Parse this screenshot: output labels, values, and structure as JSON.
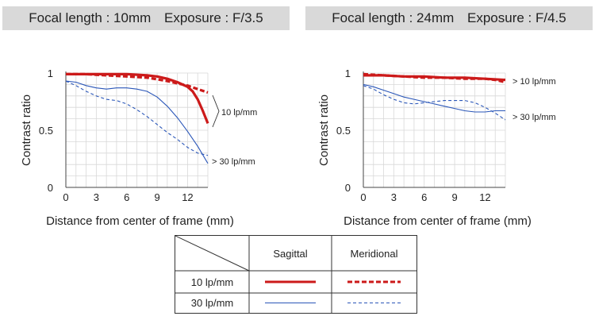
{
  "chart_data": [
    {
      "type": "line",
      "banner": {
        "focal": "Focal length : 10mm",
        "exposure": "Exposure : F/3.5"
      },
      "xlabel": "Distance from center of frame (mm)",
      "ylabel": "Contrast ratio",
      "xlim": [
        0,
        14
      ],
      "ylim": [
        0,
        1
      ],
      "xticks": [
        "0",
        "3",
        "6",
        "9",
        "12"
      ],
      "yticks": [
        "0",
        "0.5",
        "1"
      ],
      "grid": true,
      "annotations": {
        "lp10": "10 lp/mm",
        "lp30": "> 30 lp/mm"
      },
      "series": [
        {
          "name": "10 lp/mm Sagittal",
          "color": "#cc1a1a",
          "style": "solid",
          "weight": "bold",
          "x": [
            0,
            2,
            4,
            6,
            8,
            9,
            10,
            11,
            12,
            12.5,
            13,
            13.5,
            14
          ],
          "y": [
            0.99,
            0.99,
            0.99,
            0.99,
            0.98,
            0.97,
            0.95,
            0.92,
            0.88,
            0.84,
            0.77,
            0.67,
            0.56
          ]
        },
        {
          "name": "10 lp/mm Meridional",
          "color": "#cc1a1a",
          "style": "dashed",
          "weight": "bold",
          "x": [
            0,
            2,
            4,
            6,
            8,
            10,
            11,
            12,
            13,
            14
          ],
          "y": [
            0.99,
            0.99,
            0.98,
            0.97,
            0.96,
            0.93,
            0.91,
            0.89,
            0.86,
            0.83
          ]
        },
        {
          "name": "30 lp/mm Sagittal",
          "color": "#2a56b8",
          "style": "solid",
          "weight": "thin",
          "x": [
            0,
            1,
            2,
            3,
            4,
            5,
            6,
            7,
            8,
            9,
            10,
            11,
            12,
            13,
            14
          ],
          "y": [
            0.93,
            0.92,
            0.89,
            0.87,
            0.86,
            0.87,
            0.87,
            0.86,
            0.84,
            0.79,
            0.71,
            0.61,
            0.49,
            0.36,
            0.21
          ]
        },
        {
          "name": "30 lp/mm Meridional",
          "color": "#2a56b8",
          "style": "dashed",
          "weight": "thin",
          "x": [
            0,
            1,
            2,
            3,
            4,
            5,
            6,
            7,
            8,
            9,
            10,
            11,
            12,
            13,
            14
          ],
          "y": [
            0.93,
            0.89,
            0.84,
            0.8,
            0.77,
            0.76,
            0.73,
            0.68,
            0.62,
            0.55,
            0.48,
            0.42,
            0.35,
            0.3,
            0.28
          ]
        }
      ]
    },
    {
      "type": "line",
      "banner": {
        "focal": "Focal length : 24mm",
        "exposure": "Exposure : F/4.5"
      },
      "xlabel": "Distance from center of frame (mm)",
      "ylabel": "Contrast ratio",
      "xlim": [
        0,
        14
      ],
      "ylim": [
        0,
        1
      ],
      "xticks": [
        "0",
        "3",
        "6",
        "9",
        "12"
      ],
      "yticks": [
        "0",
        "0.5",
        "1"
      ],
      "grid": true,
      "annotations": {
        "lp10": "> 10 lp/mm",
        "lp30": "> 30 lp/mm"
      },
      "series": [
        {
          "name": "10 lp/mm Sagittal",
          "color": "#cc1a1a",
          "style": "solid",
          "weight": "bold",
          "x": [
            0,
            2,
            4,
            6,
            8,
            10,
            12,
            14
          ],
          "y": [
            0.98,
            0.98,
            0.97,
            0.97,
            0.96,
            0.96,
            0.95,
            0.94
          ]
        },
        {
          "name": "10 lp/mm Meridional",
          "color": "#cc1a1a",
          "style": "dashed",
          "weight": "bold",
          "x": [
            0,
            2,
            4,
            6,
            8,
            10,
            12,
            13,
            14
          ],
          "y": [
            0.99,
            0.98,
            0.97,
            0.96,
            0.96,
            0.95,
            0.95,
            0.94,
            0.92
          ]
        },
        {
          "name": "30 lp/mm Sagittal",
          "color": "#2a56b8",
          "style": "solid",
          "weight": "thin",
          "x": [
            0,
            1,
            2,
            3,
            4,
            5,
            6,
            7,
            8,
            9,
            10,
            11,
            12,
            13,
            14
          ],
          "y": [
            0.9,
            0.88,
            0.85,
            0.82,
            0.79,
            0.77,
            0.75,
            0.73,
            0.71,
            0.69,
            0.67,
            0.66,
            0.66,
            0.67,
            0.67
          ]
        },
        {
          "name": "30 lp/mm Meridional",
          "color": "#2a56b8",
          "style": "dashed",
          "weight": "thin",
          "x": [
            0,
            1,
            2,
            3,
            4,
            5,
            6,
            7,
            8,
            9,
            10,
            11,
            12,
            13,
            14
          ],
          "y": [
            0.89,
            0.86,
            0.81,
            0.77,
            0.74,
            0.73,
            0.74,
            0.75,
            0.76,
            0.76,
            0.76,
            0.74,
            0.7,
            0.65,
            0.59
          ]
        }
      ]
    }
  ],
  "legend": {
    "headers": [
      "Sagittal",
      "Meridional"
    ],
    "rows": [
      {
        "label": "10 lp/mm",
        "color": "#cc1a1a",
        "weight": "bold"
      },
      {
        "label": "30 lp/mm",
        "color": "#2a56b8",
        "weight": "thin"
      }
    ]
  }
}
